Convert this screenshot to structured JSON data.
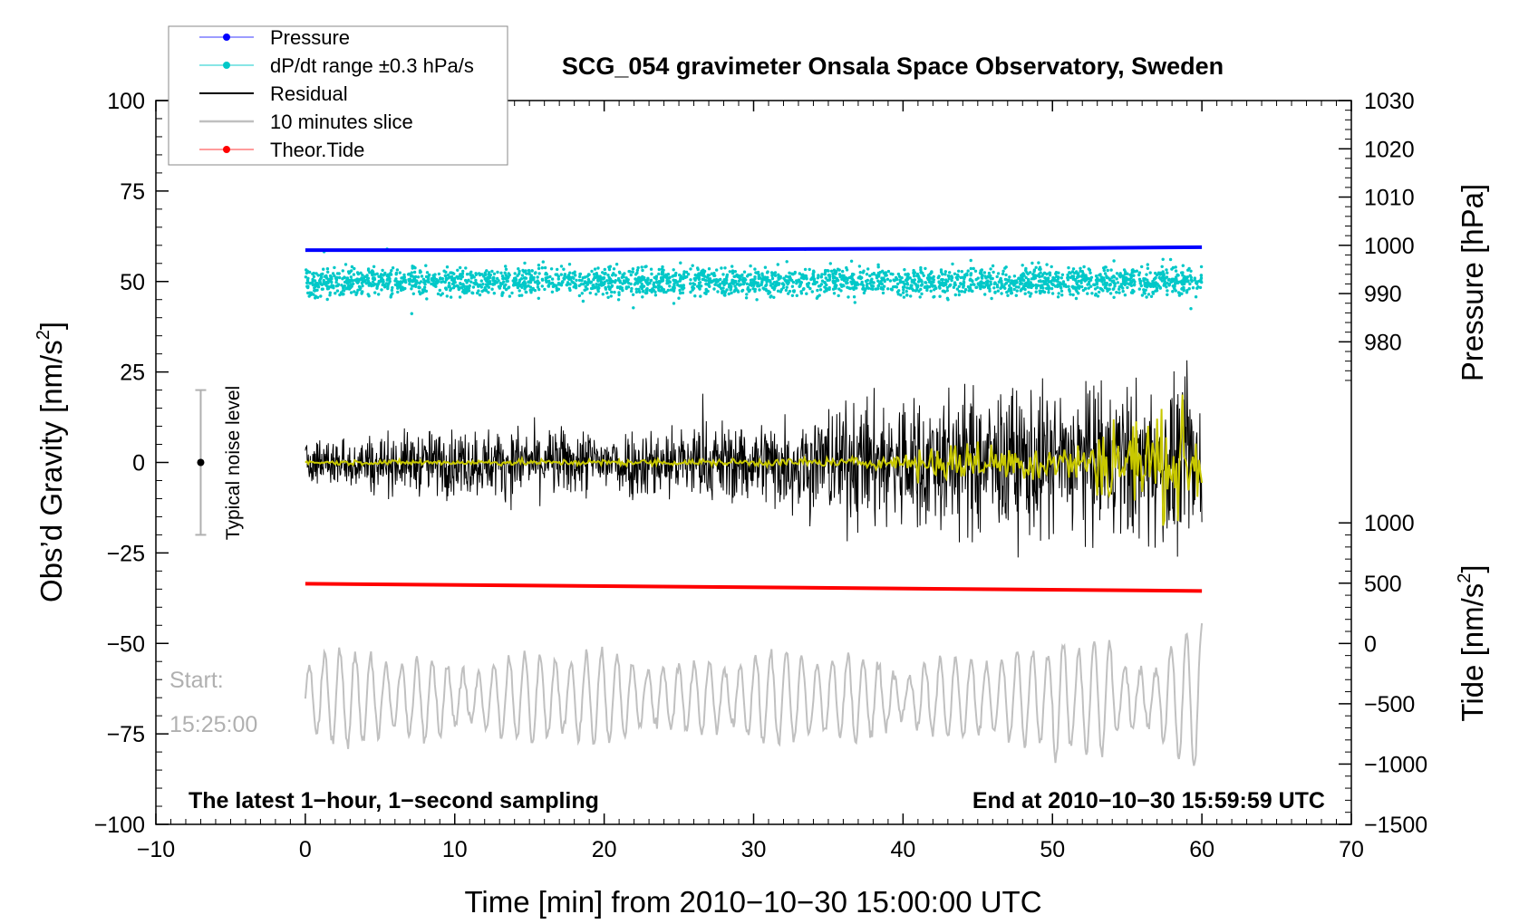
{
  "chart_data": {
    "type": "line",
    "title": "SCG_054 gravimeter Onsala Space Observatory, Sweden",
    "xlabel": "Time [min] from 2010−10−30 15:00:00 UTC",
    "ylabel_left": "Obs’d Gravity [nm/s²]",
    "ylabel_left_main": "Obs’d Gravity [nm/s",
    "ylabel_left_sup": "2",
    "ylabel_left_close": "]",
    "ylabel_right_pressure": "Pressure [hPa]",
    "ylabel_right_tide": "Tide [nm/s²]",
    "ylabel_right_tide_main": "Tide [nm/s",
    "ylabel_right_tide_sup": "2",
    "ylabel_right_tide_close": "]",
    "xlim": [
      -10,
      70
    ],
    "ylim_left": [
      -100,
      100
    ],
    "x_ticks": [
      -10,
      0,
      10,
      20,
      30,
      40,
      50,
      60,
      70
    ],
    "x_tick_labels": [
      "−10",
      "0",
      "10",
      "20",
      "30",
      "40",
      "50",
      "60",
      "70"
    ],
    "y_ticks_left": [
      -100,
      -75,
      -50,
      -25,
      0,
      25,
      50,
      75,
      100
    ],
    "y_tick_labels_left": [
      "−100",
      "−75",
      "−50",
      "−25",
      "0",
      "25",
      "50",
      "75",
      "100"
    ],
    "pressure_axis": {
      "range_hpa": [
        970,
        1030
      ],
      "maps_to_gravity": [
        20,
        100
      ],
      "ticks": [
        980,
        990,
        1000,
        1010,
        1020,
        1030
      ],
      "tick_labels": [
        "980",
        "990",
        "1000",
        "1010",
        "1020",
        "1030"
      ]
    },
    "tide_axis": {
      "range_nms2": [
        -1500,
        1000
      ],
      "maps_to_gravity": [
        -100,
        -16.7
      ],
      "ticks": [
        -1500,
        -1000,
        -500,
        0,
        500,
        1000
      ],
      "tick_labels": [
        "−1500",
        "−1000",
        "−500",
        "0",
        "500",
        "1000"
      ]
    },
    "series": [
      {
        "name": "Pressure",
        "color": "#0000ff",
        "x": [
          0,
          10,
          20,
          30,
          40,
          50,
          60
        ],
        "values_hpa": [
          999.0,
          999.0,
          999.1,
          999.2,
          999.3,
          999.4,
          999.6
        ]
      },
      {
        "name": "dP/dt range ±0.3 hPa/s",
        "color": "#00c8c8",
        "description_values": {
          "center_gravity": 50,
          "spread_gravity": 5
        }
      },
      {
        "name": "Residual",
        "color": "#000000",
        "x_range": [
          0,
          60
        ],
        "amplitude_gravity": [
          8,
          12,
          12,
          15,
          25,
          28
        ],
        "amplitude_x": [
          0,
          10,
          20,
          30,
          40,
          60
        ]
      },
      {
        "name": "10 minutes slice",
        "color": "#c0c0c0",
        "center_gravity": -65
      },
      {
        "name": "Theor.Tide",
        "color": "#ff0000",
        "x": [
          0,
          60
        ],
        "values_gravity": [
          -33.5,
          -35.5
        ]
      }
    ],
    "mean_residual_color": "#c8c800",
    "legend": [
      "Pressure",
      "dP/dt range ±0.3 hPa/s",
      "Residual",
      "10 minutes slice",
      "Theor.Tide"
    ],
    "legend_position": "top-left",
    "noise_bar": {
      "label": "Typical noise level",
      "center": 0,
      "half_range": 20,
      "x": -7
    },
    "annotations": {
      "start_label": "Start:",
      "start_time": "15:25:00",
      "bottom_left": "The latest 1−hour, 1−second sampling",
      "bottom_right": "End at 2010−10−30 15:59:59 UTC"
    }
  }
}
